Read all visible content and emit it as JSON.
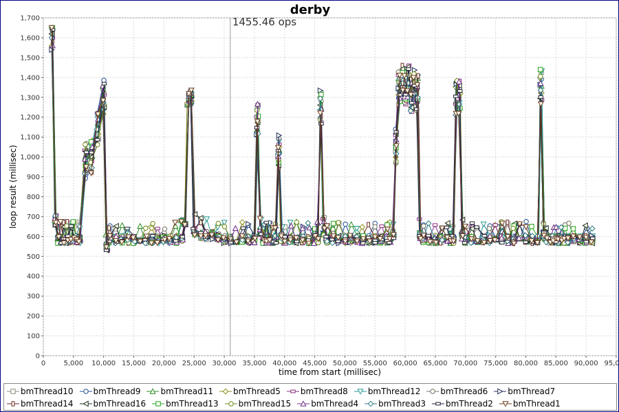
{
  "chart_data": {
    "type": "line",
    "title": "derby",
    "xlabel": "time from start (millisec)",
    "ylabel": "loop result (millisec)",
    "xlim": [
      0,
      95000
    ],
    "ylim": [
      0,
      1700
    ],
    "grid": true,
    "legend_position": "bottom",
    "x_ticks": [
      "0",
      "5,000",
      "10,000",
      "15,000",
      "20,000",
      "25,000",
      "30,000",
      "35,000",
      "40,000",
      "45,000",
      "50,000",
      "55,000",
      "60,000",
      "65,000",
      "70,000",
      "75,000",
      "80,000",
      "85,000",
      "90,000",
      "95,000"
    ],
    "y_ticks": [
      "0",
      "100",
      "200",
      "300",
      "400",
      "500",
      "600",
      "700",
      "800",
      "900",
      "1,000",
      "1,100",
      "1,200",
      "1,300",
      "1,400",
      "1,500",
      "1,600",
      "1,700"
    ],
    "annotation": {
      "x": 31000,
      "label": "1455.46 ops"
    },
    "series": [
      {
        "name": "bmThread10",
        "color": "#888888",
        "marker": "square"
      },
      {
        "name": "bmThread9",
        "color": "#2050a0",
        "marker": "circle"
      },
      {
        "name": "bmThread11",
        "color": "#2a8a2a",
        "marker": "triangle-up"
      },
      {
        "name": "bmThread5",
        "color": "#8a8a20",
        "marker": "diamond"
      },
      {
        "name": "bmThread8",
        "color": "#8a2a8a",
        "marker": "rect-h"
      },
      {
        "name": "bmThread12",
        "color": "#2a9a9a",
        "marker": "triangle-down"
      },
      {
        "name": "bmThread6",
        "color": "#707070",
        "marker": "circle"
      },
      {
        "name": "bmThread7",
        "color": "#203060",
        "marker": "triangle-right"
      },
      {
        "name": "bmThread14",
        "color": "#6a2a2a",
        "marker": "rect-v"
      },
      {
        "name": "bmThread16",
        "color": "#203020",
        "marker": "triangle-left"
      },
      {
        "name": "bmThread13",
        "color": "#20a020",
        "marker": "square"
      },
      {
        "name": "bmThread15",
        "color": "#6a8a20",
        "marker": "circle"
      },
      {
        "name": "bmThread4",
        "color": "#6a2a8a",
        "marker": "triangle-up"
      },
      {
        "name": "bmThread3",
        "color": "#2a7a8a",
        "marker": "diamond"
      },
      {
        "name": "bmThread2",
        "color": "#202040",
        "marker": "rect-h"
      },
      {
        "name": "bmThread1",
        "color": "#6a3a20",
        "marker": "triangle-down"
      }
    ],
    "x": [
      1500,
      2000,
      2500,
      3000,
      3500,
      4000,
      4500,
      5000,
      5500,
      6000,
      7000,
      8000,
      9000,
      10000,
      10500,
      11000,
      12000,
      13000,
      14000,
      15000,
      16000,
      17000,
      18000,
      19000,
      20000,
      21000,
      22000,
      23000,
      23500,
      24000,
      24500,
      25000,
      26000,
      27000,
      28000,
      29000,
      30000,
      31000,
      32000,
      33000,
      34000,
      35000,
      35500,
      36000,
      36500,
      37000,
      37500,
      38000,
      38500,
      39000,
      39500,
      40000,
      41000,
      42000,
      43000,
      44000,
      45000,
      45500,
      46000,
      46500,
      47000,
      48000,
      49000,
      50000,
      51000,
      52000,
      53000,
      54000,
      55000,
      56000,
      57000,
      57500,
      58000,
      58500,
      59000,
      59500,
      60000,
      60500,
      61000,
      61500,
      62000,
      62500,
      63000,
      64000,
      65000,
      66000,
      67000,
      67500,
      68000,
      68500,
      69000,
      69500,
      70000,
      71000,
      72000,
      73000,
      74000,
      75000,
      76000,
      77000,
      78000,
      79000,
      80000,
      81000,
      82000,
      82500,
      83000,
      83500,
      84000,
      84500,
      85000,
      85500,
      86000,
      86500,
      87000,
      88000,
      89000,
      90000,
      91000
    ],
    "base": [
      1620,
      680,
      600,
      600,
      600,
      600,
      600,
      600,
      600,
      600,
      980,
      1000,
      1150,
      1300,
      560,
      600,
      600,
      600,
      600,
      600,
      600,
      600,
      600,
      600,
      600,
      600,
      600,
      610,
      650,
      1250,
      1300,
      640,
      620,
      620,
      620,
      610,
      600,
      600,
      600,
      600,
      600,
      600,
      1200,
      640,
      600,
      600,
      600,
      600,
      600,
      1020,
      610,
      600,
      600,
      600,
      600,
      600,
      600,
      600,
      1250,
      640,
      600,
      600,
      600,
      600,
      600,
      600,
      600,
      600,
      600,
      600,
      600,
      600,
      620,
      1050,
      1350,
      1380,
      1350,
      1380,
      1300,
      1350,
      1320,
      620,
      600,
      600,
      600,
      600,
      600,
      600,
      600,
      1300,
      1300,
      620,
      600,
      600,
      600,
      600,
      600,
      600,
      600,
      600,
      600,
      600,
      600,
      600,
      600,
      1350,
      620,
      600,
      600,
      600,
      600,
      600,
      600,
      600,
      600,
      600,
      600,
      600,
      600
    ]
  }
}
